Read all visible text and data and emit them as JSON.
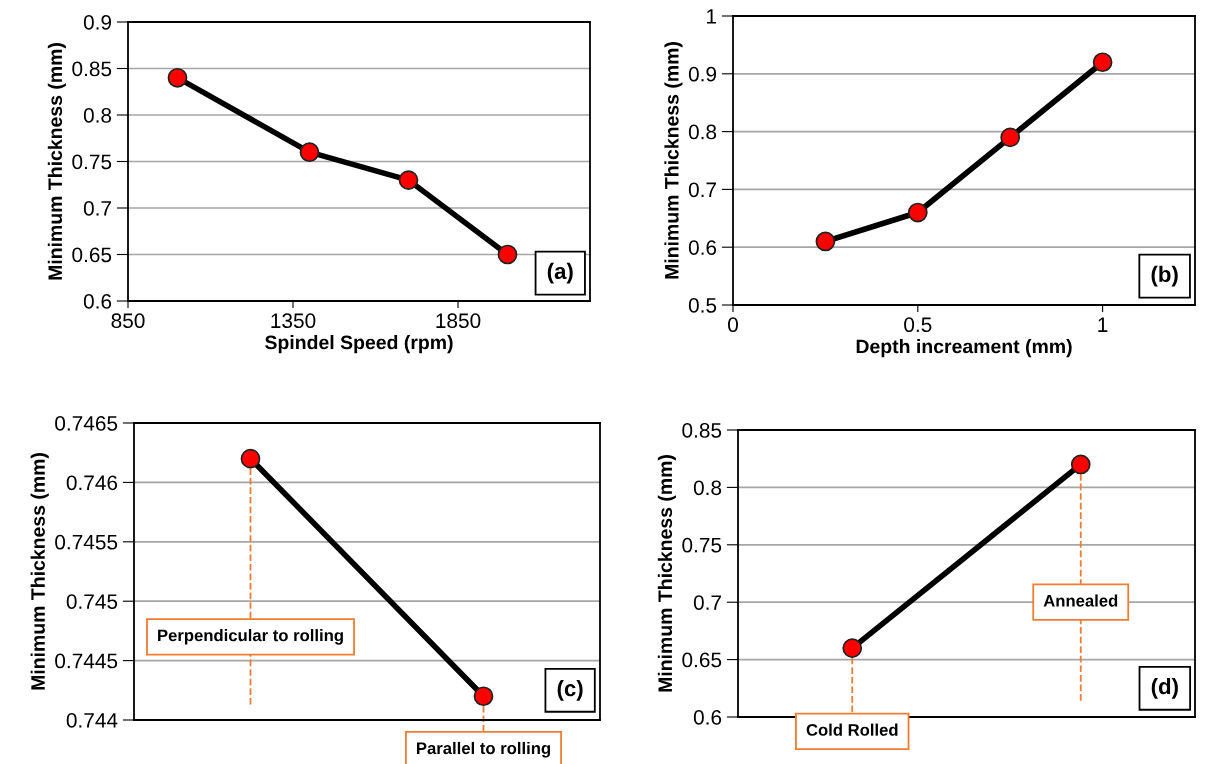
{
  "chart_data": [
    {
      "type": "line",
      "xlabel": "Spindel Speed (rpm)",
      "ylabel": "Minimum Thickness (mm)",
      "x": [
        1000,
        1400,
        1700,
        2000
      ],
      "series": [
        {
          "color": "#000000",
          "values": [
            0.84,
            0.76,
            0.73,
            0.65
          ]
        }
      ],
      "xlim": [
        850,
        2250
      ],
      "xticks": [
        850,
        1350,
        1850
      ],
      "ylim": [
        0.6,
        0.9
      ],
      "yticks": [
        0.6,
        0.65,
        0.7,
        0.75,
        0.8,
        0.85,
        0.9
      ],
      "grid": "y",
      "marker": "circle",
      "line_style": "solid",
      "legend": false,
      "annotations": [
        "(a)"
      ]
    },
    {
      "type": "line",
      "xlabel": "Depth increament (mm)",
      "ylabel": "Minimum Thickness (mm)",
      "x": [
        0.25,
        0.5,
        0.75,
        1
      ],
      "series": [
        {
          "color": "#000000",
          "values": [
            0.61,
            0.66,
            0.79,
            0.92
          ]
        }
      ],
      "xlim": [
        0,
        1.25
      ],
      "xticks": [
        0,
        0.5,
        1
      ],
      "ylim": [
        0.5,
        1
      ],
      "yticks": [
        0.5,
        0.6,
        0.7,
        0.8,
        0.9,
        1
      ],
      "grid": "y",
      "marker": "circle",
      "line_style": "solid",
      "legend": false,
      "annotations": [
        "(b)"
      ]
    },
    {
      "type": "line",
      "ylabel": "Minimum Thickness (mm)",
      "categories": [
        "Perpendicular to rolling",
        "Parallel to rolling"
      ],
      "series": [
        {
          "color": "#000000",
          "values": [
            0.7462,
            0.7442
          ]
        }
      ],
      "ylim": [
        0.744,
        0.7465
      ],
      "yticks": [
        0.744,
        0.7445,
        0.745,
        0.7455,
        0.746,
        0.7465
      ],
      "grid": "y",
      "marker": "circle",
      "line_style": "solid",
      "legend": false,
      "annotations": [
        "(c)"
      ],
      "ref_lines": [
        {
          "axis": "x",
          "value": "Perpendicular to rolling",
          "color": "#ed7d31",
          "line_style": "dashed"
        }
      ]
    },
    {
      "type": "line",
      "ylabel": "Minimum Thickness (mm)",
      "categories": [
        "Cold Rolled",
        "Annealed"
      ],
      "series": [
        {
          "color": "#000000",
          "values": [
            0.66,
            0.82
          ]
        }
      ],
      "ylim": [
        0.6,
        0.85
      ],
      "yticks": [
        0.6,
        0.65,
        0.7,
        0.75,
        0.8,
        0.85
      ],
      "grid": "y",
      "marker": "circle",
      "line_style": "solid",
      "legend": false,
      "annotations": [
        "(d)"
      ],
      "ref_lines": [
        {
          "axis": "x",
          "value": "Annealed",
          "color": "#ed7d31",
          "line_style": "dashed"
        }
      ]
    }
  ]
}
